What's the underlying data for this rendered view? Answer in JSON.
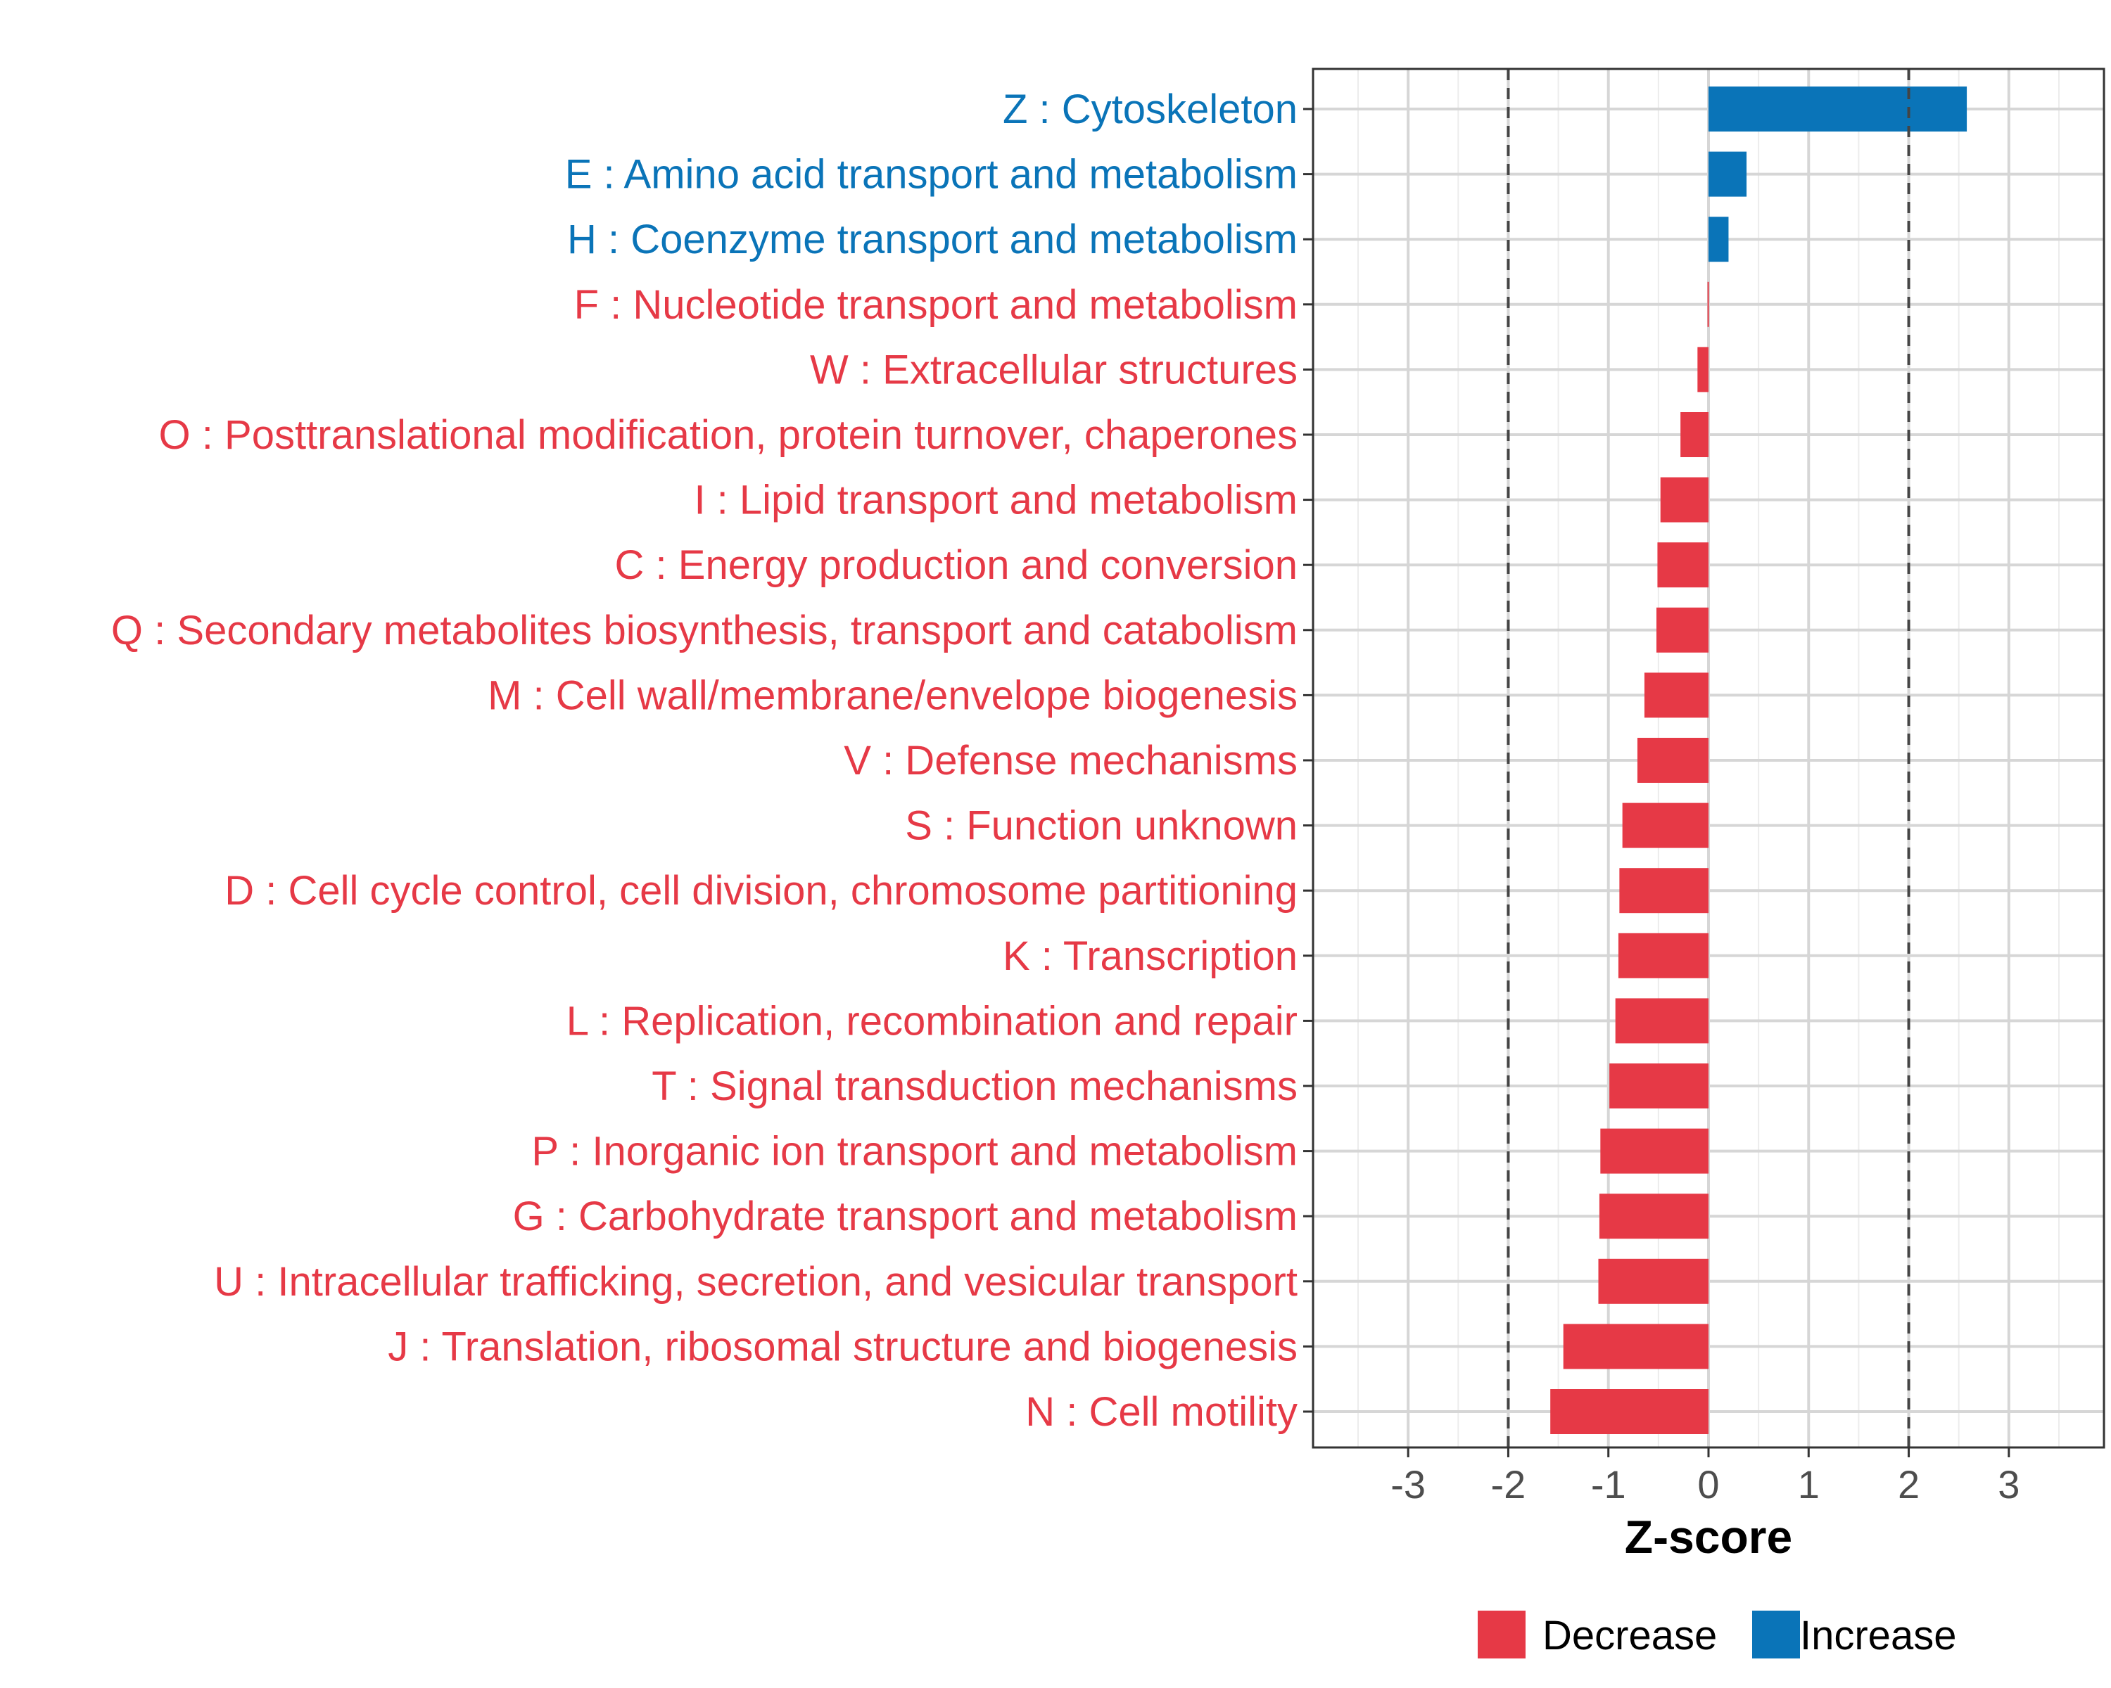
{
  "chart_data": {
    "type": "bar",
    "orientation": "horizontal",
    "title": "",
    "xlabel": "Z-score",
    "ylabel": "",
    "xlim": [
      -3.95,
      3.95
    ],
    "xticks": [
      -3,
      -2,
      -1,
      0,
      1,
      2,
      3
    ],
    "xtick_labels": [
      "-3",
      "-2",
      "-1",
      "0",
      "1",
      "2",
      "3"
    ],
    "reference_lines": [
      -2,
      2
    ],
    "grid": true,
    "legend_position": "bottom",
    "colors": {
      "Decrease": "#e63946",
      "Increase": "#0a74b8"
    },
    "legend": [
      "Decrease",
      "Increase"
    ],
    "categories": [
      "Z : Cytoskeleton",
      "E : Amino acid transport and metabolism",
      "H : Coenzyme transport and metabolism",
      "F : Nucleotide transport and metabolism",
      "W : Extracellular structures",
      "O : Posttranslational modification, protein turnover, chaperones",
      "I : Lipid transport and metabolism",
      "C : Energy production and conversion",
      "Q : Secondary metabolites biosynthesis, transport and catabolism",
      "M : Cell wall/membrane/envelope biogenesis",
      "V : Defense mechanisms",
      "S : Function unknown",
      "D : Cell cycle control, cell division, chromosome partitioning",
      "K : Transcription",
      "L : Replication, recombination and repair",
      "T : Signal transduction mechanisms",
      "P : Inorganic ion transport and metabolism",
      "G : Carbohydrate transport and metabolism",
      "U : Intracellular trafficking, secretion, and vesicular transport",
      "J : Translation, ribosomal structure and biogenesis",
      "N : Cell motility"
    ],
    "values": [
      2.58,
      0.38,
      0.2,
      -0.01,
      -0.11,
      -0.28,
      -0.48,
      -0.51,
      -0.52,
      -0.64,
      -0.71,
      -0.86,
      -0.89,
      -0.9,
      -0.93,
      -0.99,
      -1.08,
      -1.09,
      -1.1,
      -1.45,
      -1.58
    ],
    "groups": [
      "Increase",
      "Increase",
      "Increase",
      "Decrease",
      "Decrease",
      "Decrease",
      "Decrease",
      "Decrease",
      "Decrease",
      "Decrease",
      "Decrease",
      "Decrease",
      "Decrease",
      "Decrease",
      "Decrease",
      "Decrease",
      "Decrease",
      "Decrease",
      "Decrease",
      "Decrease",
      "Decrease"
    ]
  }
}
